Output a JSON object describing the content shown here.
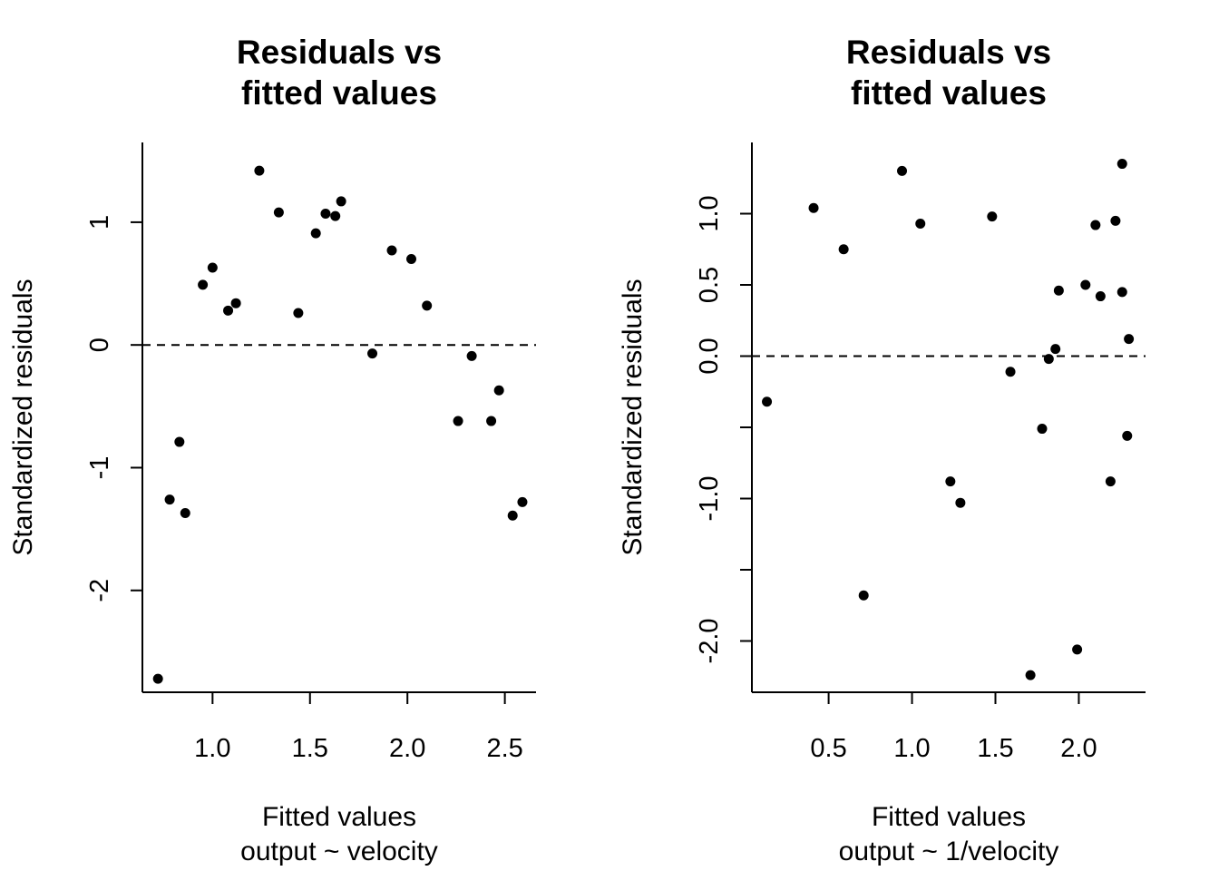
{
  "chart_data": [
    {
      "type": "scatter",
      "title_lines": [
        "Residuals vs",
        "fitted values"
      ],
      "xlabel_lines": [
        "Fitted values",
        "output ~ velocity"
      ],
      "ylabel": "Standardized residuals",
      "xlim": [
        0.64,
        2.66
      ],
      "ylim": [
        -2.83,
        1.65
      ],
      "x_ticks": [
        1.0,
        1.5,
        2.0,
        2.5
      ],
      "x_tick_labels": [
        "1.0",
        "1.5",
        "2.0",
        "2.5"
      ],
      "y_ticks": [
        -2,
        -1,
        0,
        1
      ],
      "y_tick_labels": [
        "-2",
        "-1",
        "0",
        "1"
      ],
      "reference_line": {
        "y": 0,
        "style": "dashed"
      },
      "grid": false,
      "series": [
        {
          "x": [
            0.72,
            0.78,
            0.83,
            0.86,
            0.95,
            1.0,
            1.08,
            1.12,
            1.24,
            1.34,
            1.44,
            1.53,
            1.58,
            1.63,
            1.66,
            1.82,
            1.92,
            2.02,
            2.1,
            2.26,
            2.33,
            2.43,
            2.47,
            2.54,
            2.59
          ],
          "y": [
            -2.72,
            -1.26,
            -0.79,
            -1.37,
            0.49,
            0.63,
            0.28,
            0.34,
            1.42,
            1.08,
            0.26,
            0.91,
            1.07,
            1.05,
            1.17,
            -0.07,
            0.77,
            0.7,
            0.32,
            -0.62,
            -0.09,
            -0.62,
            -0.37,
            -1.39,
            -1.28
          ]
        }
      ]
    },
    {
      "type": "scatter",
      "title_lines": [
        "Residuals vs",
        "fitted values"
      ],
      "xlabel_lines": [
        "Fitted values",
        "output ~ 1/velocity"
      ],
      "ylabel": "Standardized residuals",
      "xlim": [
        0.04,
        2.4
      ],
      "ylim": [
        -2.36,
        1.5
      ],
      "x_ticks": [
        0.5,
        1.0,
        1.5,
        2.0
      ],
      "x_tick_labels": [
        "0.5",
        "1.0",
        "1.5",
        "2.0"
      ],
      "y_ticks": [
        -2.0,
        -1.5,
        -1.0,
        -0.5,
        0.0,
        0.5,
        1.0
      ],
      "y_tick_labels": [
        "-2.0",
        "",
        "-1.0",
        "",
        "0.0",
        "0.5",
        "1.0"
      ],
      "reference_line": {
        "y": 0,
        "style": "dashed"
      },
      "grid": false,
      "series": [
        {
          "x": [
            0.13,
            0.41,
            0.59,
            0.71,
            0.94,
            1.05,
            1.23,
            1.29,
            1.48,
            1.59,
            1.71,
            1.78,
            1.82,
            1.86,
            1.88,
            1.99,
            2.04,
            2.1,
            2.13,
            2.19,
            2.22,
            2.26,
            2.26,
            2.29,
            2.3
          ],
          "y": [
            -0.32,
            1.04,
            0.75,
            -1.68,
            1.3,
            0.93,
            -0.88,
            -1.03,
            0.98,
            -0.11,
            -2.24,
            -0.51,
            -0.02,
            0.05,
            0.46,
            -2.06,
            0.5,
            0.92,
            0.42,
            -0.88,
            0.95,
            0.45,
            1.35,
            -0.56,
            0.12
          ]
        }
      ]
    }
  ]
}
